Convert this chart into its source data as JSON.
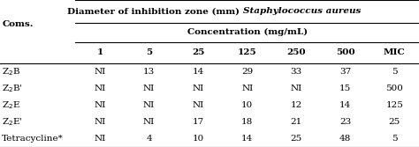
{
  "title_regular": "Diameter of inhibition zone (mm) ",
  "title_italic": "Staphylococcus aureus",
  "col_header_main": "Concentration (mg/mL)",
  "row_header": "Coms.",
  "columns": [
    "1",
    "5",
    "25",
    "125",
    "250",
    "500",
    "MIC"
  ],
  "rows": [
    {
      "label": "Z$_2$B",
      "values": [
        "NI",
        "13",
        "14",
        "29",
        "33",
        "37",
        "5"
      ]
    },
    {
      "label": "Z$_2$B'",
      "values": [
        "NI",
        "NI",
        "NI",
        "NI",
        "NI",
        "15",
        "500"
      ]
    },
    {
      "label": "Z$_2$E",
      "values": [
        "NI",
        "NI",
        "NI",
        "10",
        "12",
        "14",
        "125"
      ]
    },
    {
      "label": "Z$_2$E'",
      "values": [
        "NI",
        "NI",
        "17",
        "18",
        "21",
        "23",
        "25"
      ]
    },
    {
      "label": "Tetracycline*",
      "values": [
        "NI",
        "4",
        "10",
        "14",
        "25",
        "48",
        "5"
      ]
    }
  ],
  "background_color": "#ffffff",
  "font_size": 7.5,
  "header_font_size": 7.5
}
